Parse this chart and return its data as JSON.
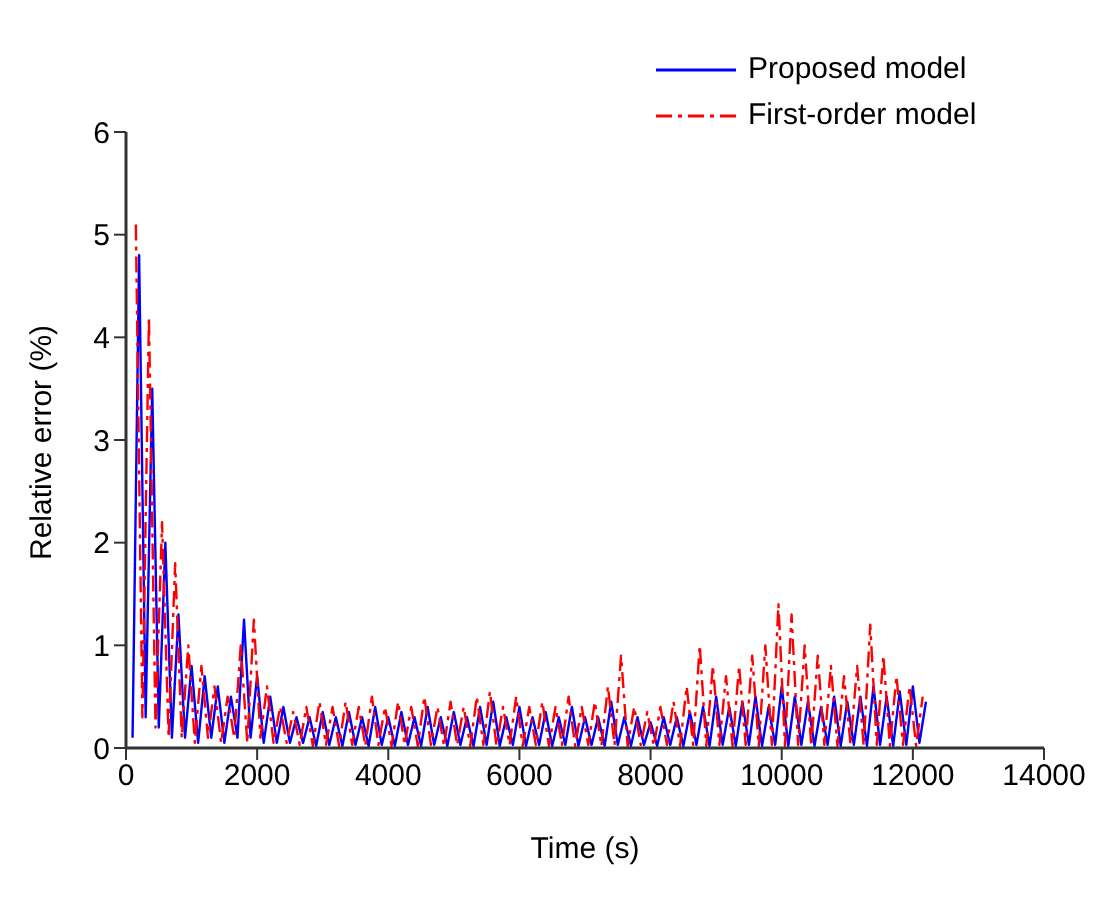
{
  "chart_data": {
    "type": "line",
    "xlabel": "Time (s)",
    "ylabel": "Relative error (%)",
    "xlim": [
      0,
      14000
    ],
    "xticks": [
      0,
      2000,
      4000,
      6000,
      8000,
      10000,
      12000,
      14000
    ],
    "ylim": [
      0,
      6
    ],
    "yticks": [
      0,
      1,
      2,
      3,
      4,
      5,
      6
    ],
    "grid": false,
    "legend": "top right",
    "marker": "none",
    "series": [
      {
        "name": "Proposed model",
        "color": "#0000ff",
        "line_style": "solid",
        "x": [
          100,
          200,
          300,
          400,
          500,
          600,
          700,
          800,
          900,
          1000,
          1100,
          1200,
          1300,
          1400,
          1500,
          1600,
          1700,
          1800,
          1900,
          2000,
          2100,
          2200,
          2300,
          2400,
          2500,
          2600,
          2700,
          2800,
          2900,
          3000,
          3100,
          3200,
          3300,
          3400,
          3500,
          3600,
          3700,
          3800,
          3900,
          4000,
          4100,
          4200,
          4300,
          4400,
          4500,
          4600,
          4700,
          4800,
          4900,
          5000,
          5100,
          5200,
          5300,
          5400,
          5500,
          5600,
          5700,
          5800,
          5900,
          6000,
          6100,
          6200,
          6300,
          6400,
          6500,
          6600,
          6700,
          6800,
          6900,
          7000,
          7100,
          7200,
          7300,
          7400,
          7500,
          7600,
          7700,
          7800,
          7900,
          8000,
          8100,
          8200,
          8300,
          8400,
          8500,
          8600,
          8700,
          8800,
          8900,
          9000,
          9100,
          9200,
          9300,
          9400,
          9500,
          9600,
          9700,
          9800,
          9900,
          10000,
          10100,
          10200,
          10300,
          10400,
          10500,
          10600,
          10700,
          10800,
          10900,
          11000,
          11100,
          11200,
          11300,
          11400,
          11500,
          11600,
          11700,
          11800,
          11900,
          12000,
          12100,
          12200
        ],
        "values": [
          0.1,
          4.8,
          0.3,
          3.5,
          0.2,
          2.0,
          0.1,
          1.3,
          0.1,
          0.8,
          0.05,
          0.7,
          0.1,
          0.6,
          0.05,
          0.5,
          0.1,
          1.25,
          0.1,
          0.7,
          0.05,
          0.5,
          0.05,
          0.4,
          0.05,
          0.3,
          0.05,
          0.3,
          0.02,
          0.35,
          0.03,
          0.3,
          0.02,
          0.35,
          0.03,
          0.3,
          0.02,
          0.4,
          0.03,
          0.3,
          0.02,
          0.35,
          0.03,
          0.3,
          0.02,
          0.4,
          0.03,
          0.3,
          0.02,
          0.35,
          0.03,
          0.3,
          0.02,
          0.4,
          0.03,
          0.45,
          0.02,
          0.3,
          0.03,
          0.4,
          0.02,
          0.3,
          0.03,
          0.35,
          0.02,
          0.3,
          0.03,
          0.4,
          0.02,
          0.3,
          0.03,
          0.3,
          0.02,
          0.45,
          0.03,
          0.3,
          0.02,
          0.3,
          0.03,
          0.25,
          0.02,
          0.3,
          0.03,
          0.3,
          0.02,
          0.35,
          0.03,
          0.4,
          0.02,
          0.5,
          0.03,
          0.4,
          0.02,
          0.45,
          0.03,
          0.5,
          0.02,
          0.4,
          0.03,
          0.6,
          0.02,
          0.5,
          0.03,
          0.45,
          0.02,
          0.4,
          0.03,
          0.5,
          0.02,
          0.45,
          0.03,
          0.5,
          0.02,
          0.6,
          0.03,
          0.5,
          0.02,
          0.55,
          0.03,
          0.6,
          0.05,
          0.45
        ]
      },
      {
        "name": "First-order model",
        "color": "#ff0000",
        "line_style": "dashed",
        "x": [
          150,
          250,
          350,
          450,
          550,
          650,
          750,
          850,
          950,
          1050,
          1150,
          1250,
          1350,
          1450,
          1550,
          1650,
          1750,
          1850,
          1950,
          2050,
          2150,
          2250,
          2350,
          2450,
          2550,
          2650,
          2750,
          2850,
          2950,
          3050,
          3150,
          3250,
          3350,
          3450,
          3550,
          3650,
          3750,
          3850,
          3950,
          4050,
          4150,
          4250,
          4350,
          4450,
          4550,
          4650,
          4750,
          4850,
          4950,
          5050,
          5150,
          5250,
          5350,
          5450,
          5550,
          5650,
          5750,
          5850,
          5950,
          6050,
          6150,
          6250,
          6350,
          6450,
          6550,
          6650,
          6750,
          6850,
          6950,
          7050,
          7150,
          7250,
          7350,
          7450,
          7550,
          7650,
          7750,
          7850,
          7950,
          8050,
          8150,
          8250,
          8350,
          8450,
          8550,
          8650,
          8750,
          8850,
          8950,
          9050,
          9150,
          9250,
          9350,
          9450,
          9550,
          9650,
          9750,
          9850,
          9950,
          10050,
          10150,
          10250,
          10350,
          10450,
          10550,
          10650,
          10750,
          10850,
          10950,
          11050,
          11150,
          11250,
          11350,
          11450,
          11550,
          11650,
          11750,
          11850,
          11950,
          12050,
          12150
        ],
        "values": [
          5.1,
          0.3,
          4.2,
          0.2,
          2.2,
          0.1,
          1.8,
          0.1,
          1.0,
          0.05,
          0.8,
          0.1,
          0.6,
          0.05,
          0.5,
          0.1,
          1.0,
          0.05,
          1.25,
          0.1,
          0.6,
          0.05,
          0.4,
          0.05,
          0.35,
          0.03,
          0.4,
          0.02,
          0.45,
          0.03,
          0.4,
          0.02,
          0.45,
          0.03,
          0.4,
          0.02,
          0.5,
          0.03,
          0.4,
          0.02,
          0.45,
          0.03,
          0.4,
          0.02,
          0.5,
          0.03,
          0.4,
          0.02,
          0.45,
          0.03,
          0.4,
          0.02,
          0.5,
          0.03,
          0.55,
          0.02,
          0.4,
          0.03,
          0.5,
          0.02,
          0.4,
          0.03,
          0.45,
          0.02,
          0.4,
          0.03,
          0.5,
          0.02,
          0.4,
          0.03,
          0.45,
          0.02,
          0.6,
          0.03,
          0.9,
          0.02,
          0.4,
          0.03,
          0.35,
          0.02,
          0.4,
          0.03,
          0.45,
          0.02,
          0.6,
          0.03,
          1.0,
          0.02,
          0.8,
          0.03,
          0.7,
          0.02,
          0.8,
          0.03,
          0.9,
          0.02,
          1.0,
          0.03,
          1.4,
          0.02,
          1.3,
          0.03,
          1.0,
          0.02,
          0.9,
          0.03,
          0.8,
          0.02,
          0.7,
          0.03,
          0.8,
          0.02,
          1.2,
          0.03,
          0.9,
          0.02,
          0.7,
          0.03,
          0.6,
          0.02,
          0.5
        ]
      }
    ]
  }
}
